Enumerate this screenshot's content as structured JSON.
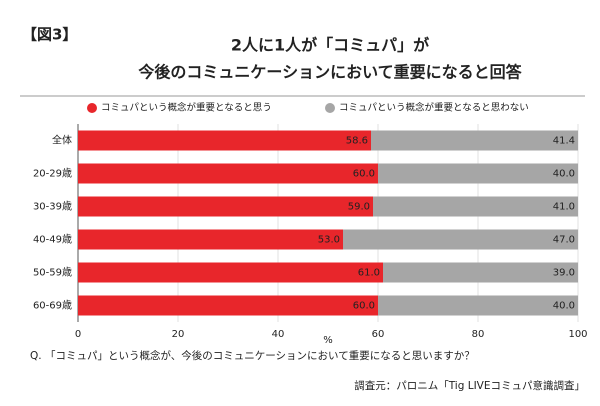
{
  "chart_data": {
    "type": "stacked-bar-horizontal",
    "figure_label": "【図3】",
    "title": [
      "2人に1人が「コミュパ」が",
      "今後のコミュニケーションにおいて重要になると回答"
    ],
    "categories": [
      "全体",
      "20-29歳",
      "30-39歳",
      "40-49歳",
      "50-59歳",
      "60-69歳"
    ],
    "series": [
      {
        "name": "コミュパという概念が重要となると思う",
        "color": "#e8262b",
        "values": [
          58.6,
          60,
          59,
          53,
          61,
          60
        ],
        "value_labels": [
          "58.6",
          "60.0",
          "59.0",
          "53.0",
          "61.0",
          "60.0"
        ]
      },
      {
        "name": "コミュパという概念が重要となると思わない",
        "color": "#a6a6a6",
        "values": [
          41.4,
          40,
          41,
          47,
          39,
          40
        ],
        "value_labels": [
          "41.4",
          "40.0",
          "41.0",
          "47.0",
          "39.0",
          "40.0"
        ]
      }
    ],
    "xlim": [
      0,
      100
    ],
    "xticks": [
      0,
      20,
      40,
      60,
      80,
      100
    ],
    "xlabel": "%",
    "grid": true,
    "question": "Q. 「コミュパ」という概念が、今後のコミュニケーションにおいて重要になると思いますか？",
    "source": "調査元：パロニム「Tig LIVEコミュパ意識調査」"
  }
}
